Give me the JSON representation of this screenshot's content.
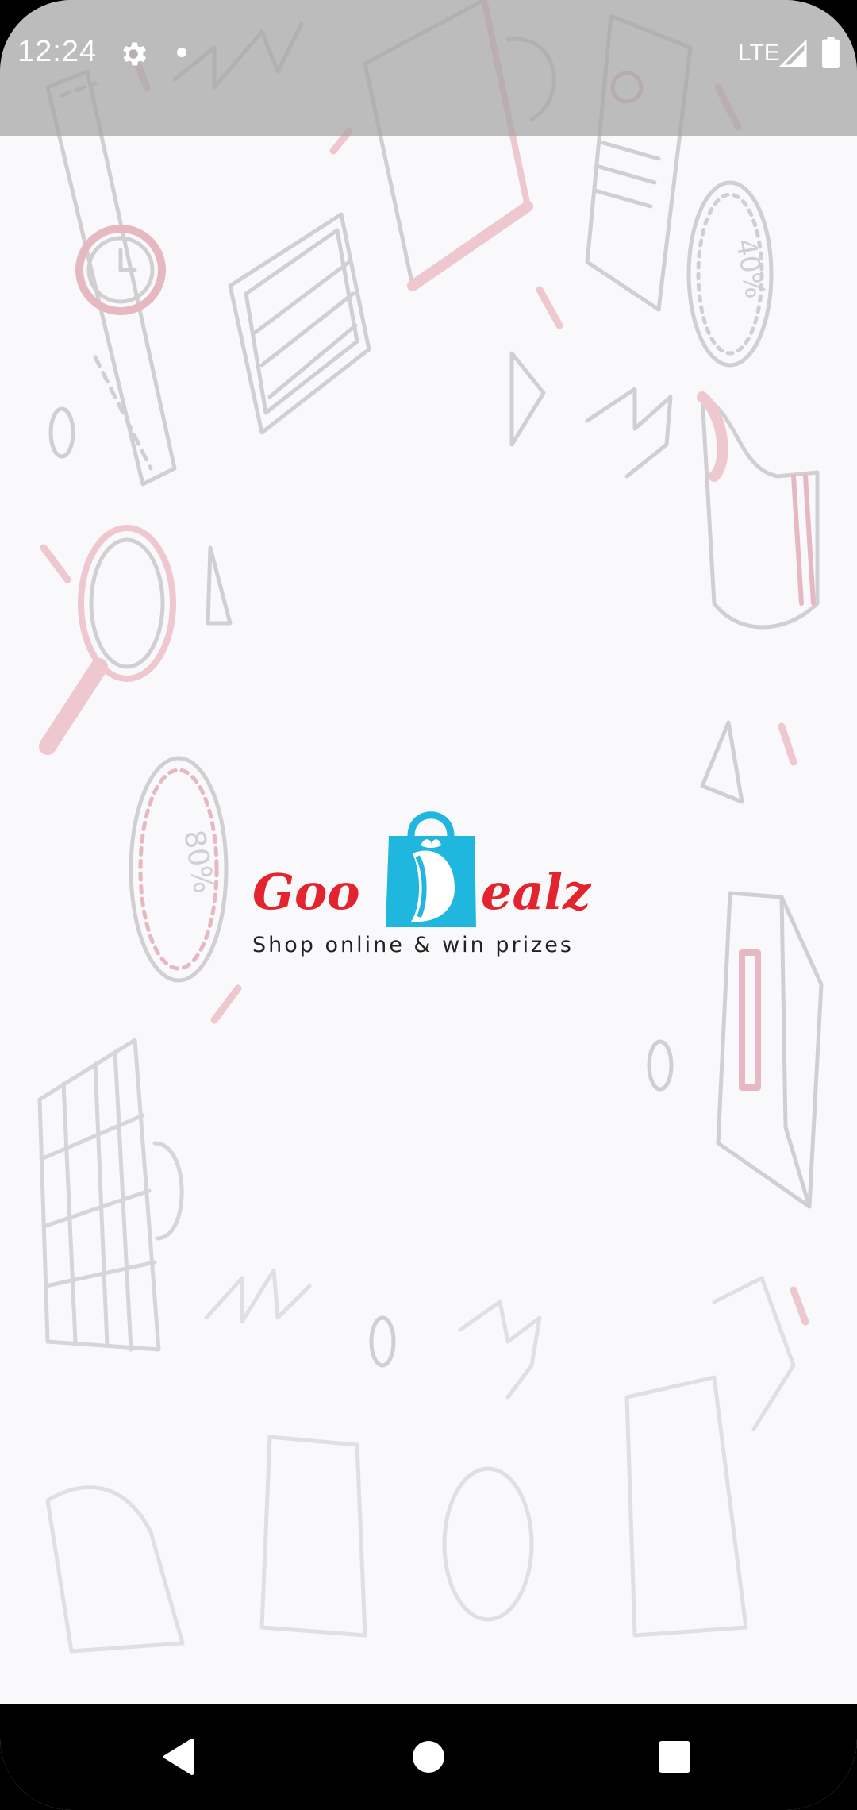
{
  "status_bar": {
    "time": "12:24",
    "network": "LTE",
    "icons": [
      "gear-icon",
      "notification-dot-icon",
      "signal-icon",
      "battery-icon"
    ]
  },
  "logo": {
    "brand_left": "Goo",
    "brand_letter_icon": "shopping-bag-letter-d-icon",
    "brand_right": "ealz",
    "tagline": "Shop online & win prizes",
    "colors": {
      "brand_red": "#e3232d",
      "bag_blue": "#1fb7dd",
      "tagline": "#222222"
    }
  },
  "background": {
    "color": "#f9f8fa",
    "doodle_color": "#d9d6d9",
    "accent_pink": "#f0c8cf",
    "doodle_icons": [
      "watch-icon",
      "laptop-icon",
      "tablet-icon",
      "receipt-icon",
      "price-tag-icon",
      "magnifier-icon",
      "sock-icon",
      "mug-icon",
      "book-icon",
      "lightning-icon",
      "triangle-icon"
    ]
  },
  "nav_bar": {
    "icons": [
      "back-icon",
      "home-icon",
      "recents-icon"
    ]
  }
}
